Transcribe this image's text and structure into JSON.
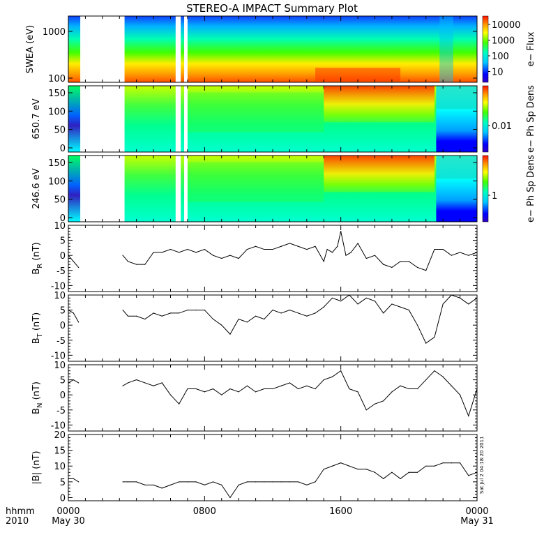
{
  "title": "STEREO-A IMPACT Summary Plot",
  "stamp": "Sat Jul  2 04:18:20 2011",
  "x_axis": {
    "corner_labels": [
      "hhmm",
      "2010"
    ],
    "ticks": [
      {
        "label": "0000",
        "sub": "May 30",
        "frac": 0.0
      },
      {
        "label": "0800",
        "sub": "",
        "frac": 0.3333
      },
      {
        "label": "1600",
        "sub": "",
        "frac": 0.6667
      },
      {
        "label": "0000",
        "sub": "May 31",
        "frac": 1.0
      }
    ]
  },
  "colors": {
    "spectral": [
      "#0000ff",
      "#00a0ff",
      "#00ffff",
      "#00e070",
      "#40ff00",
      "#ffff00",
      "#ffa000",
      "#ff3000"
    ],
    "line": "#000000"
  },
  "chart_data": [
    {
      "type": "heatmap",
      "id": "swea",
      "ylabel": "SWEA (eV)",
      "yticks": [
        "1000",
        "100"
      ],
      "colorbar_label": "e− Flux",
      "colorbar_ticks": [
        "10000",
        "1000",
        "100",
        "10"
      ],
      "x_range_hours": [
        0,
        24
      ],
      "gaps_hours": [
        [
          0.7,
          3.3
        ],
        [
          6.3,
          6.6
        ],
        [
          6.8,
          7.0
        ]
      ],
      "note": "energy spectrogram, high flux at low energy"
    },
    {
      "type": "heatmap",
      "id": "pad_650",
      "ylabel": "650.7 eV",
      "yticks": [
        "150",
        "100",
        "50",
        "0"
      ],
      "colorbar_label": "e− Ph Sp Dens",
      "colorbar_ticks": [
        "0.01"
      ],
      "x_range_hours": [
        0,
        24
      ],
      "gaps_hours": [
        [
          0.7,
          3.3
        ],
        [
          6.3,
          6.6
        ],
        [
          6.8,
          7.0
        ]
      ]
    },
    {
      "type": "heatmap",
      "id": "pad_246",
      "ylabel": "246.6 eV",
      "yticks": [
        "150",
        "100",
        "50",
        "0"
      ],
      "colorbar_label": "e− Ph Sp Dens",
      "colorbar_ticks": [
        "1"
      ],
      "x_range_hours": [
        0,
        24
      ],
      "gaps_hours": [
        [
          0.7,
          3.3
        ],
        [
          6.3,
          6.6
        ],
        [
          6.8,
          7.0
        ]
      ]
    },
    {
      "type": "line",
      "id": "br",
      "ylabel": "B",
      "ylabel_sub": "R",
      "ylabel_unit": " (nT)",
      "ylim": [
        -12,
        10
      ],
      "yticks": [
        10,
        5,
        0,
        -5,
        -10
      ],
      "x_hours": [
        0.0,
        0.3,
        0.6,
        3.2,
        3.5,
        4.0,
        4.5,
        5.0,
        5.5,
        6.0,
        6.5,
        7.0,
        7.5,
        8.0,
        8.5,
        9.0,
        9.5,
        10.0,
        10.5,
        11.0,
        11.5,
        12.0,
        12.5,
        13.0,
        13.5,
        14.0,
        14.5,
        15.0,
        15.2,
        15.5,
        15.8,
        16.0,
        16.3,
        16.6,
        17.0,
        17.5,
        18.0,
        18.5,
        19.0,
        19.5,
        20.0,
        20.5,
        21.0,
        21.5,
        22.0,
        22.5,
        23.0,
        23.5,
        24.0
      ],
      "values": [
        0,
        -2,
        -4,
        0,
        -2,
        -3,
        -3,
        1,
        1,
        2,
        1,
        2,
        1,
        2,
        0,
        -1,
        0,
        -1,
        2,
        3,
        2,
        2,
        3,
        4,
        3,
        2,
        3,
        -2,
        2,
        1,
        3,
        8,
        0,
        1,
        4,
        -1,
        0,
        -3,
        -4,
        -2,
        -2,
        -4,
        -5,
        2,
        2,
        0,
        1,
        0,
        1
      ]
    },
    {
      "type": "line",
      "id": "bt",
      "ylabel": "B",
      "ylabel_sub": "T",
      "ylabel_unit": " (nT)",
      "ylim": [
        -12,
        10
      ],
      "yticks": [
        10,
        5,
        0,
        -5,
        -10
      ],
      "x_hours": [
        0.0,
        0.3,
        0.6,
        3.2,
        3.5,
        4.0,
        4.5,
        5.0,
        5.5,
        6.0,
        6.5,
        7.0,
        7.5,
        8.0,
        8.5,
        9.0,
        9.5,
        10.0,
        10.5,
        11.0,
        11.5,
        12.0,
        12.5,
        13.0,
        13.5,
        14.0,
        14.5,
        15.0,
        15.5,
        16.0,
        16.5,
        17.0,
        17.5,
        18.0,
        18.5,
        19.0,
        19.5,
        20.0,
        20.5,
        21.0,
        21.5,
        22.0,
        22.5,
        23.0,
        23.5,
        24.0
      ],
      "values": [
        5,
        4,
        1,
        5,
        3,
        3,
        2,
        4,
        3,
        4,
        4,
        5,
        5,
        5,
        2,
        0,
        -3,
        2,
        1,
        3,
        2,
        5,
        4,
        5,
        4,
        3,
        4,
        6,
        9,
        8,
        10,
        7,
        9,
        8,
        4,
        7,
        6,
        5,
        0,
        -6,
        -4,
        7,
        10,
        9,
        7,
        9
      ]
    },
    {
      "type": "line",
      "id": "bn",
      "ylabel": "B",
      "ylabel_sub": "N",
      "ylabel_unit": " (nT)",
      "ylim": [
        -12,
        10
      ],
      "yticks": [
        10,
        5,
        0,
        -5,
        -10
      ],
      "x_hours": [
        0.0,
        0.3,
        0.6,
        3.2,
        3.5,
        4.0,
        4.5,
        5.0,
        5.5,
        6.0,
        6.5,
        7.0,
        7.5,
        8.0,
        8.5,
        9.0,
        9.5,
        10.0,
        10.5,
        11.0,
        11.5,
        12.0,
        12.5,
        13.0,
        13.5,
        14.0,
        14.5,
        15.0,
        15.5,
        16.0,
        16.5,
        17.0,
        17.5,
        18.0,
        18.5,
        19.0,
        19.5,
        20.0,
        20.5,
        21.0,
        21.5,
        22.0,
        22.5,
        23.0,
        23.5,
        24.0
      ],
      "values": [
        4,
        5,
        4,
        3,
        4,
        5,
        4,
        3,
        4,
        0,
        -3,
        2,
        2,
        1,
        2,
        0,
        2,
        1,
        3,
        1,
        2,
        2,
        3,
        4,
        2,
        3,
        2,
        5,
        6,
        8,
        2,
        1,
        -5,
        -3,
        -2,
        1,
        3,
        2,
        2,
        5,
        8,
        6,
        3,
        0,
        -7,
        2
      ]
    },
    {
      "type": "line",
      "id": "bmag",
      "ylabel": "|B| (nT)",
      "ylim": [
        -1,
        20
      ],
      "yticks": [
        20,
        15,
        10,
        5,
        0
      ],
      "x_hours": [
        0.0,
        0.3,
        0.6,
        3.2,
        3.5,
        4.0,
        4.5,
        5.0,
        5.5,
        6.0,
        6.5,
        7.0,
        7.5,
        8.0,
        8.5,
        9.0,
        9.5,
        10.0,
        10.5,
        11.0,
        11.5,
        12.0,
        12.5,
        13.0,
        13.5,
        14.0,
        14.5,
        15.0,
        15.5,
        16.0,
        16.5,
        17.0,
        17.5,
        18.0,
        18.5,
        19.0,
        19.5,
        20.0,
        20.5,
        21.0,
        21.5,
        22.0,
        22.5,
        23.0,
        23.5,
        24.0
      ],
      "values": [
        6,
        6,
        5,
        5,
        5,
        5,
        4,
        4,
        3,
        4,
        5,
        5,
        5,
        4,
        5,
        4,
        0,
        4,
        5,
        5,
        5,
        5,
        5,
        5,
        5,
        4,
        5,
        9,
        10,
        11,
        10,
        9,
        9,
        8,
        6,
        8,
        6,
        8,
        8,
        10,
        10,
        11,
        11,
        11,
        7,
        8
      ]
    }
  ]
}
